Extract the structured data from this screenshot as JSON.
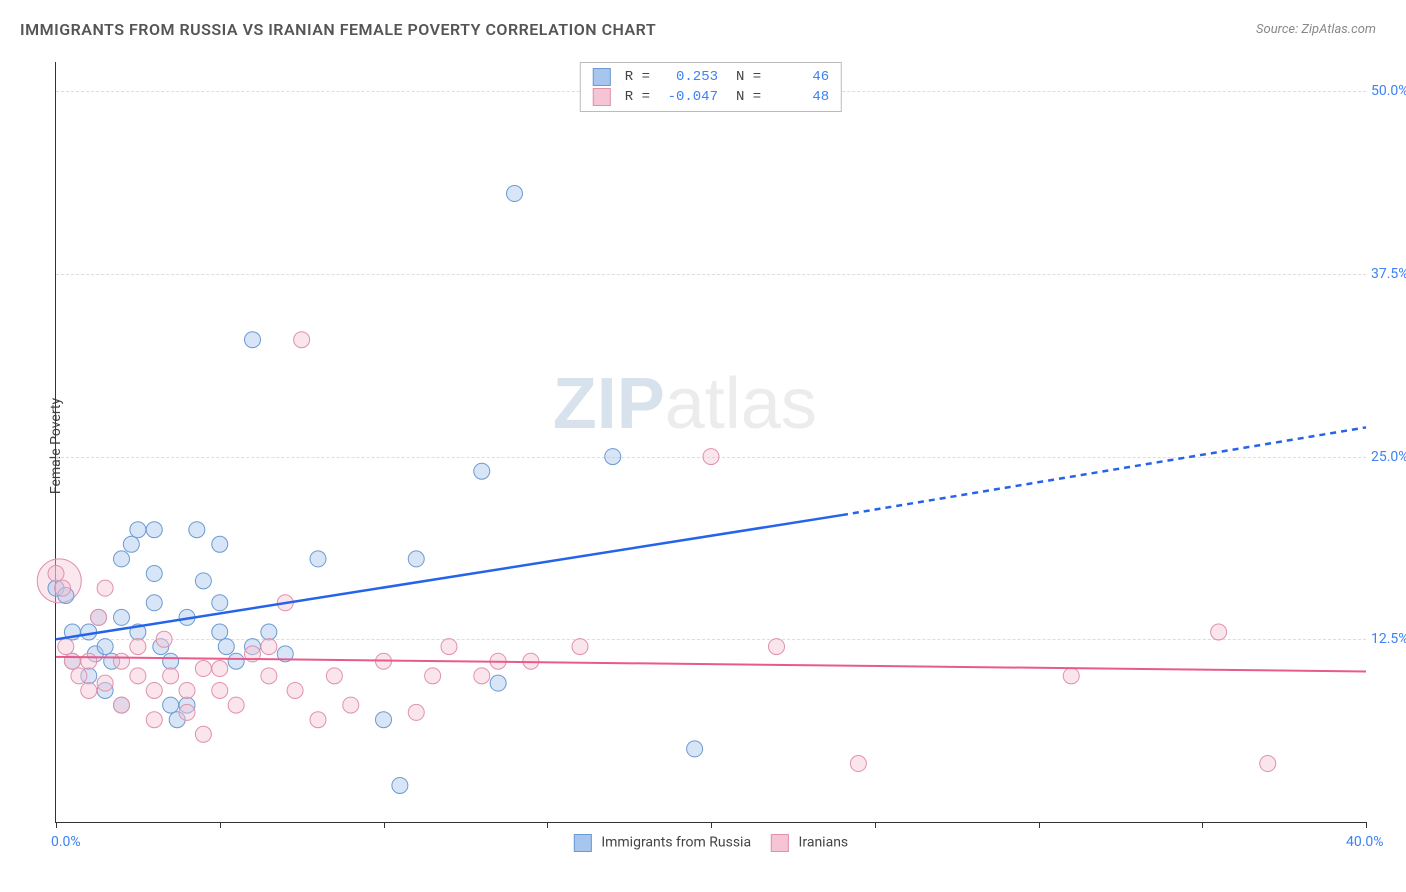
{
  "title": "IMMIGRANTS FROM RUSSIA VS IRANIAN FEMALE POVERTY CORRELATION CHART",
  "source_label": "Source: ZipAtlas.com",
  "watermark": {
    "strong": "ZIP",
    "light": "atlas"
  },
  "ylabel": "Female Poverty",
  "chart": {
    "type": "scatter-with-trend",
    "xlim": [
      0,
      40
    ],
    "ylim": [
      0,
      52
    ],
    "xticks": [
      {
        "v": 0,
        "label": "0.0%"
      },
      {
        "v": 5
      },
      {
        "v": 10
      },
      {
        "v": 15
      },
      {
        "v": 20
      },
      {
        "v": 25
      },
      {
        "v": 30
      },
      {
        "v": 35
      },
      {
        "v": 40,
        "label": "40.0%"
      }
    ],
    "yticks": [
      {
        "v": 12.5,
        "label": "12.5%"
      },
      {
        "v": 25.0,
        "label": "25.0%"
      },
      {
        "v": 37.5,
        "label": "37.5%"
      },
      {
        "v": 50.0,
        "label": "50.0%"
      }
    ],
    "background_color": "#ffffff",
    "grid_color": "#e0e0e0",
    "marker_radius": 8,
    "marker_opacity": 0.45,
    "series": [
      {
        "name": "Immigrants from Russia",
        "color_fill": "#a7c5ed",
        "color_stroke": "#6b9bd1",
        "R": "0.253",
        "N": "46",
        "trend": {
          "solid": {
            "x1": 0,
            "y1": 12.5,
            "x2": 24,
            "y2": 21
          },
          "dashed": {
            "x1": 24,
            "y1": 21,
            "x2": 40,
            "y2": 27
          },
          "color": "#2563eb",
          "width": 2.5
        },
        "points": [
          [
            0,
            16
          ],
          [
            0.3,
            15.5
          ],
          [
            0.5,
            13
          ],
          [
            0.5,
            11
          ],
          [
            1,
            13
          ],
          [
            1,
            10
          ],
          [
            1.2,
            11.5
          ],
          [
            1.3,
            14
          ],
          [
            1.5,
            12
          ],
          [
            1.5,
            9
          ],
          [
            1.7,
            11
          ],
          [
            2,
            14
          ],
          [
            2,
            18
          ],
          [
            2,
            8
          ],
          [
            2.3,
            19
          ],
          [
            2.5,
            13
          ],
          [
            2.5,
            20
          ],
          [
            3,
            15
          ],
          [
            3,
            20
          ],
          [
            3,
            17
          ],
          [
            3.2,
            12
          ],
          [
            3.5,
            8
          ],
          [
            3.5,
            11
          ],
          [
            3.7,
            7
          ],
          [
            4,
            14
          ],
          [
            4,
            8
          ],
          [
            4.3,
            20
          ],
          [
            4.5,
            16.5
          ],
          [
            5,
            19
          ],
          [
            5,
            13
          ],
          [
            5,
            15
          ],
          [
            5.2,
            12
          ],
          [
            5.5,
            11
          ],
          [
            6,
            12
          ],
          [
            6,
            33
          ],
          [
            6.5,
            13
          ],
          [
            7,
            11.5
          ],
          [
            8,
            18
          ],
          [
            10,
            7
          ],
          [
            10.5,
            2.5
          ],
          [
            11,
            18
          ],
          [
            13,
            24
          ],
          [
            13.5,
            9.5
          ],
          [
            14,
            43
          ],
          [
            17,
            25
          ],
          [
            19.5,
            5
          ]
        ]
      },
      {
        "name": "Iranians",
        "color_fill": "#f5c5d5",
        "color_stroke": "#e091ac",
        "R": "-0.047",
        "N": "48",
        "trend": {
          "solid": {
            "x1": 0,
            "y1": 11.3,
            "x2": 40,
            "y2": 10.3
          },
          "color": "#e75a8c",
          "width": 2
        },
        "points": [
          [
            0,
            17
          ],
          [
            0.2,
            16
          ],
          [
            0.3,
            12
          ],
          [
            0.5,
            11
          ],
          [
            0.7,
            10
          ],
          [
            1,
            11
          ],
          [
            1,
            9
          ],
          [
            1.3,
            14
          ],
          [
            1.5,
            9.5
          ],
          [
            1.5,
            16
          ],
          [
            2,
            11
          ],
          [
            2,
            8
          ],
          [
            2.5,
            12
          ],
          [
            2.5,
            10
          ],
          [
            3,
            9
          ],
          [
            3,
            7
          ],
          [
            3.3,
            12.5
          ],
          [
            3.5,
            10
          ],
          [
            4,
            9
          ],
          [
            4,
            7.5
          ],
          [
            4.5,
            6
          ],
          [
            4.5,
            10.5
          ],
          [
            5,
            9
          ],
          [
            5,
            10.5
          ],
          [
            5.5,
            8
          ],
          [
            6,
            11.5
          ],
          [
            6.5,
            10
          ],
          [
            6.5,
            12
          ],
          [
            7,
            15
          ],
          [
            7.3,
            9
          ],
          [
            7.5,
            33
          ],
          [
            8,
            7
          ],
          [
            8.5,
            10
          ],
          [
            9,
            8
          ],
          [
            10,
            11
          ],
          [
            11,
            7.5
          ],
          [
            11.5,
            10
          ],
          [
            12,
            12
          ],
          [
            13,
            10
          ],
          [
            13.5,
            11
          ],
          [
            14.5,
            11
          ],
          [
            16,
            12
          ],
          [
            20,
            25
          ],
          [
            22,
            12
          ],
          [
            24.5,
            4
          ],
          [
            31,
            10
          ],
          [
            35.5,
            13
          ],
          [
            37,
            4
          ]
        ]
      }
    ]
  },
  "top_legend": {
    "rows": [
      {
        "swatch_fill": "#a7c5ed",
        "swatch_stroke": "#6b9bd1",
        "R": "0.253",
        "N": "46"
      },
      {
        "swatch_fill": "#f5c5d5",
        "swatch_stroke": "#e091ac",
        "R": "-0.047",
        "N": "48"
      }
    ]
  },
  "bottom_legend": {
    "items": [
      {
        "swatch_fill": "#a7c5ed",
        "swatch_stroke": "#6b9bd1",
        "label": "Immigrants from Russia"
      },
      {
        "swatch_fill": "#f5c5d5",
        "swatch_stroke": "#e091ac",
        "label": "Iranians"
      }
    ]
  }
}
